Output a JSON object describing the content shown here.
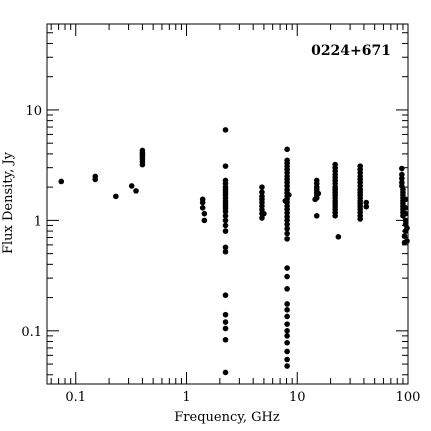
{
  "chart_data": {
    "type": "scatter",
    "title": "0224+671",
    "xlabel": "Frequency, GHz",
    "ylabel": "Flux Density, Jy",
    "xscale": "log",
    "yscale": "log",
    "xlim": [
      0.055,
      100
    ],
    "ylim": [
      0.033,
      60
    ],
    "grid": false,
    "legend": "none",
    "x_ticks": [
      0.1,
      1,
      10,
      100
    ],
    "x_tick_labels": [
      "0.1",
      "1",
      "10",
      "100"
    ],
    "y_ticks": [
      0.1,
      1,
      10
    ],
    "y_tick_labels": [
      "0.1",
      "1",
      "10"
    ],
    "marker_color": "#000000",
    "points": [
      [
        0.074,
        2.25
      ],
      [
        0.15,
        2.5
      ],
      [
        0.15,
        2.35
      ],
      [
        0.23,
        1.65
      ],
      [
        0.32,
        2.05
      ],
      [
        0.35,
        1.85
      ],
      [
        0.4,
        4.3
      ],
      [
        0.4,
        4.1
      ],
      [
        0.4,
        3.95
      ],
      [
        0.4,
        3.8
      ],
      [
        0.4,
        3.6
      ],
      [
        0.4,
        3.4
      ],
      [
        0.4,
        3.2
      ],
      [
        1.4,
        1.55
      ],
      [
        1.4,
        1.45
      ],
      [
        1.4,
        1.3
      ],
      [
        1.45,
        1.15
      ],
      [
        1.45,
        1.0
      ],
      [
        2.25,
        6.6
      ],
      [
        2.25,
        3.1
      ],
      [
        2.25,
        2.3
      ],
      [
        2.25,
        2.15
      ],
      [
        2.25,
        2.0
      ],
      [
        2.25,
        1.9
      ],
      [
        2.25,
        1.8
      ],
      [
        2.25,
        1.7
      ],
      [
        2.25,
        1.6
      ],
      [
        2.25,
        1.5
      ],
      [
        2.25,
        1.42
      ],
      [
        2.25,
        1.35
      ],
      [
        2.25,
        1.28
      ],
      [
        2.25,
        1.2
      ],
      [
        2.25,
        1.1
      ],
      [
        2.25,
        1.0
      ],
      [
        2.25,
        0.9
      ],
      [
        2.25,
        0.8
      ],
      [
        2.25,
        0.57
      ],
      [
        2.25,
        0.52
      ],
      [
        2.25,
        0.21
      ],
      [
        2.25,
        0.14
      ],
      [
        2.25,
        0.12
      ],
      [
        2.25,
        0.105
      ],
      [
        2.25,
        0.083
      ],
      [
        2.25,
        0.042
      ],
      [
        4.8,
        2.0
      ],
      [
        4.8,
        1.8
      ],
      [
        4.8,
        1.65
      ],
      [
        4.8,
        1.55
      ],
      [
        4.8,
        1.45
      ],
      [
        4.8,
        1.35
      ],
      [
        4.8,
        1.25
      ],
      [
        4.8,
        1.15
      ],
      [
        4.8,
        1.05
      ],
      [
        5.0,
        1.15
      ],
      [
        8.1,
        4.4
      ],
      [
        8.1,
        3.5
      ],
      [
        8.1,
        3.3
      ],
      [
        8.1,
        3.1
      ],
      [
        8.1,
        2.9
      ],
      [
        8.1,
        2.7
      ],
      [
        8.1,
        2.5
      ],
      [
        8.1,
        2.35
      ],
      [
        8.1,
        2.2
      ],
      [
        8.1,
        2.05
      ],
      [
        8.1,
        1.9
      ],
      [
        8.1,
        1.78
      ],
      [
        8.1,
        1.66
      ],
      [
        8.1,
        1.55
      ],
      [
        8.1,
        1.45
      ],
      [
        8.1,
        1.35
      ],
      [
        8.1,
        1.26
      ],
      [
        8.1,
        1.17
      ],
      [
        8.1,
        1.08
      ],
      [
        8.1,
        1.0
      ],
      [
        8.1,
        0.92
      ],
      [
        8.1,
        0.84
      ],
      [
        8.1,
        0.76
      ],
      [
        8.1,
        0.68
      ],
      [
        8.1,
        0.37
      ],
      [
        8.1,
        0.31
      ],
      [
        8.1,
        0.24
      ],
      [
        8.1,
        0.175
      ],
      [
        8.1,
        0.155
      ],
      [
        8.1,
        0.135
      ],
      [
        8.1,
        0.115
      ],
      [
        8.1,
        0.1
      ],
      [
        8.1,
        0.09
      ],
      [
        8.1,
        0.078
      ],
      [
        8.1,
        0.065
      ],
      [
        8.1,
        0.055
      ],
      [
        8.1,
        0.048
      ],
      [
        7.8,
        1.5
      ],
      [
        8.4,
        1.7
      ],
      [
        15,
        2.3
      ],
      [
        15,
        2.15
      ],
      [
        15,
        2.0
      ],
      [
        15,
        1.9
      ],
      [
        15,
        1.8
      ],
      [
        15,
        1.7
      ],
      [
        15,
        1.6
      ],
      [
        14.5,
        1.55
      ],
      [
        15.5,
        1.75
      ],
      [
        15,
        1.1
      ],
      [
        22,
        3.2
      ],
      [
        22,
        3.0
      ],
      [
        22,
        2.8
      ],
      [
        22,
        2.6
      ],
      [
        22,
        2.45
      ],
      [
        22,
        2.3
      ],
      [
        22,
        2.15
      ],
      [
        22,
        2.0
      ],
      [
        22,
        1.9
      ],
      [
        22,
        1.8
      ],
      [
        22,
        1.7
      ],
      [
        22,
        1.6
      ],
      [
        22,
        1.5
      ],
      [
        22,
        1.42
      ],
      [
        22,
        1.34
      ],
      [
        22,
        1.26
      ],
      [
        22,
        1.18
      ],
      [
        22,
        1.1
      ],
      [
        23.5,
        0.71
      ],
      [
        37,
        3.1
      ],
      [
        37,
        2.9
      ],
      [
        37,
        2.7
      ],
      [
        37,
        2.5
      ],
      [
        37,
        2.35
      ],
      [
        37,
        2.2
      ],
      [
        37,
        2.05
      ],
      [
        37,
        1.9
      ],
      [
        37,
        1.8
      ],
      [
        37,
        1.7
      ],
      [
        37,
        1.6
      ],
      [
        37,
        1.5
      ],
      [
        37,
        1.42
      ],
      [
        37,
        1.34
      ],
      [
        37,
        1.26
      ],
      [
        37,
        1.18
      ],
      [
        37,
        1.1
      ],
      [
        37,
        1.03
      ],
      [
        42,
        1.45
      ],
      [
        42,
        1.33
      ],
      [
        88,
        2.95
      ],
      [
        88,
        2.6
      ],
      [
        88,
        2.4
      ],
      [
        88,
        2.2
      ],
      [
        88,
        2.05
      ],
      [
        90,
        1.9
      ],
      [
        90,
        1.8
      ],
      [
        90,
        1.7
      ],
      [
        90,
        1.6
      ],
      [
        90,
        1.5
      ],
      [
        90,
        1.42
      ],
      [
        90,
        1.34
      ],
      [
        90,
        1.26
      ],
      [
        90,
        1.18
      ],
      [
        90,
        1.1
      ],
      [
        95,
        1.55
      ],
      [
        95,
        1.3
      ],
      [
        95,
        1.15
      ],
      [
        95,
        1.0
      ],
      [
        95,
        0.92
      ],
      [
        95,
        0.8
      ],
      [
        93,
        0.72
      ],
      [
        93,
        0.63
      ],
      [
        98,
        0.65
      ],
      [
        98,
        0.85
      ]
    ]
  }
}
